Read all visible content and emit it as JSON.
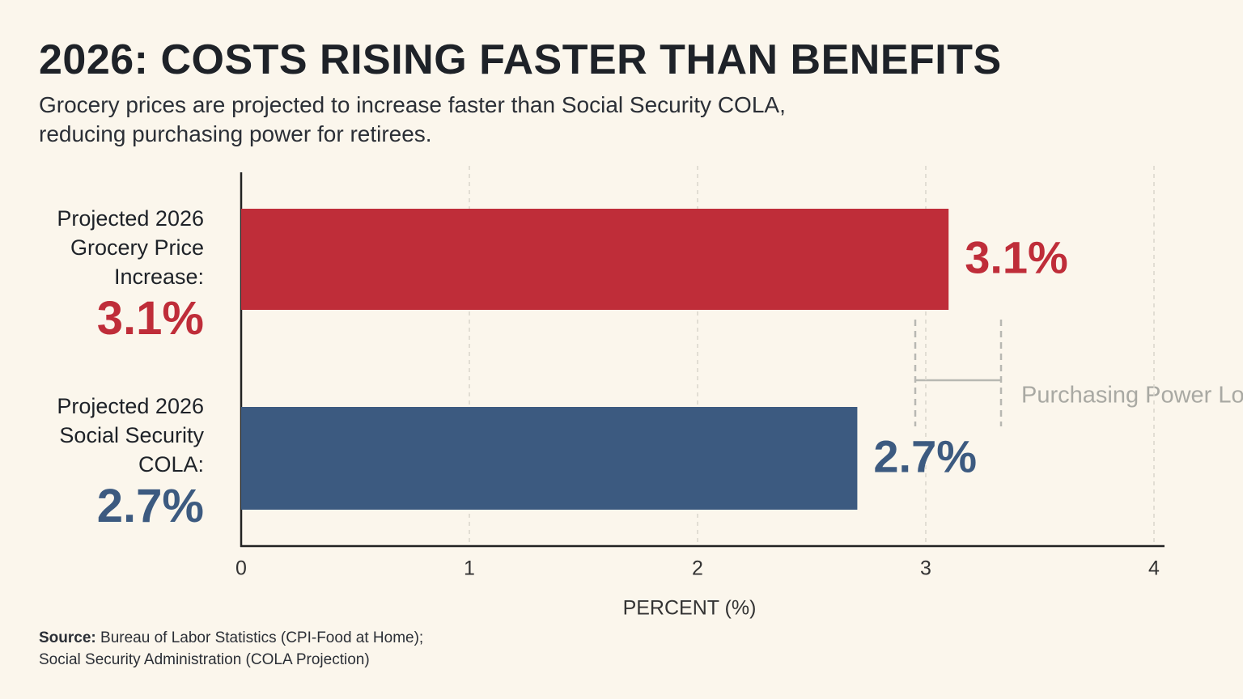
{
  "chart_data": {
    "type": "hbar",
    "title": "2026: COSTS RISING FASTER THAN BENEFITS",
    "subtitle": "Grocery prices are projected to increase faster than Social Security COLA, reducing purchasing power for retirees.",
    "categories": [
      "Projected 2026 Grocery Price Increase:",
      "Projected 2026 Social Security COLA:"
    ],
    "values": [
      3.1,
      2.7
    ],
    "value_labels": [
      "3.1%",
      "2.7%"
    ],
    "colors": [
      "#bf2d39",
      "#3c5a80"
    ],
    "xlim": [
      0,
      4
    ],
    "xticks": [
      0,
      1,
      2,
      3,
      4
    ],
    "grid": true,
    "xlabel": "PERCENT (%)",
    "annotation": "Purchasing Power Loss",
    "source_label": "Source:",
    "source": "Bureau of Labor Statistics (CPI-Food at Home); Social Security Administration (COLA Projection)"
  }
}
